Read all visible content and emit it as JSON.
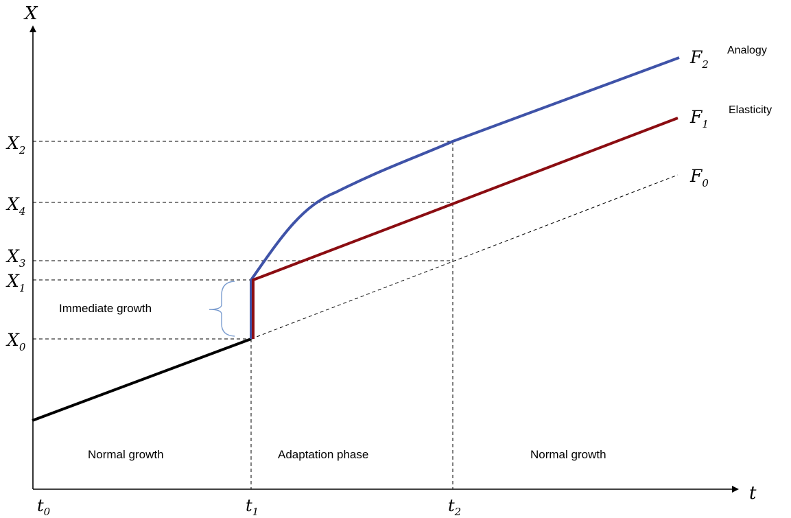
{
  "axes": {
    "y_label": "X",
    "x_label": "t"
  },
  "y_ticks": [
    {
      "base": "X",
      "sub": "2"
    },
    {
      "base": "X",
      "sub": "4"
    },
    {
      "base": "X",
      "sub": "3"
    },
    {
      "base": "X",
      "sub": "1"
    },
    {
      "base": "X",
      "sub": "0"
    }
  ],
  "x_ticks": [
    {
      "base": "t",
      "sub": "0"
    },
    {
      "base": "t",
      "sub": "1"
    },
    {
      "base": "t",
      "sub": "2"
    }
  ],
  "curves": [
    {
      "base": "F",
      "sub": "2",
      "name": "Analogy",
      "color": "#3f53a8"
    },
    {
      "base": "F",
      "sub": "1",
      "name": "Elasticity",
      "color": "#8b0d12"
    },
    {
      "base": "F",
      "sub": "0",
      "name": "",
      "color": "#000000"
    }
  ],
  "annotations": {
    "immediate_growth": "Immediate growth",
    "brace_color": "#7a9ccf"
  },
  "phases": [
    "Normal growth",
    "Adaptation phase",
    "Normal growth"
  ]
}
